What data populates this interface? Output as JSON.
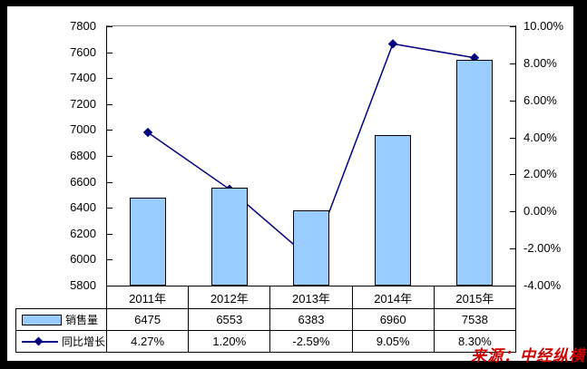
{
  "chart_data": {
    "type": "combo-bar-line",
    "title": "",
    "categories": [
      "2011年",
      "2012年",
      "2013年",
      "2014年",
      "2015年"
    ],
    "series": [
      {
        "name": "销售量",
        "chart": "bar",
        "axis": "left",
        "color": "#99CCFF",
        "values": [
          6475,
          6553,
          6383,
          6960,
          7538
        ],
        "labels": [
          "6475",
          "6553",
          "6383",
          "6960",
          "7538"
        ]
      },
      {
        "name": "同比增长",
        "chart": "line",
        "axis": "right",
        "color": "#000080",
        "values": [
          4.27,
          1.2,
          -2.59,
          9.05,
          8.3
        ],
        "labels": [
          "4.27%",
          "1.20%",
          "-2.59%",
          "9.05%",
          "8.30%"
        ]
      }
    ],
    "left_axis": {
      "min": 5800,
      "max": 7800,
      "step": 200,
      "ticks": [
        "7800",
        "7600",
        "7400",
        "7200",
        "7000",
        "6800",
        "6600",
        "6400",
        "6200",
        "6000",
        "5800"
      ]
    },
    "right_axis": {
      "min": -4,
      "max": 10,
      "step": 2,
      "ticks": [
        "10.00%",
        "8.00%",
        "6.00%",
        "4.00%",
        "2.00%",
        "0.00%",
        "-2.00%",
        "-4.00%"
      ]
    },
    "grid": false,
    "legend_position": "table-left",
    "table_shown": true
  },
  "source_note": "来源：中经纵横",
  "colors": {
    "bar_fill": "#99CCFF",
    "line": "#000080",
    "plot_border_top": "#858585",
    "axis": "#000000",
    "source_text": "#CC0000",
    "frame": "#000000",
    "panel": "#FFFFFF"
  }
}
